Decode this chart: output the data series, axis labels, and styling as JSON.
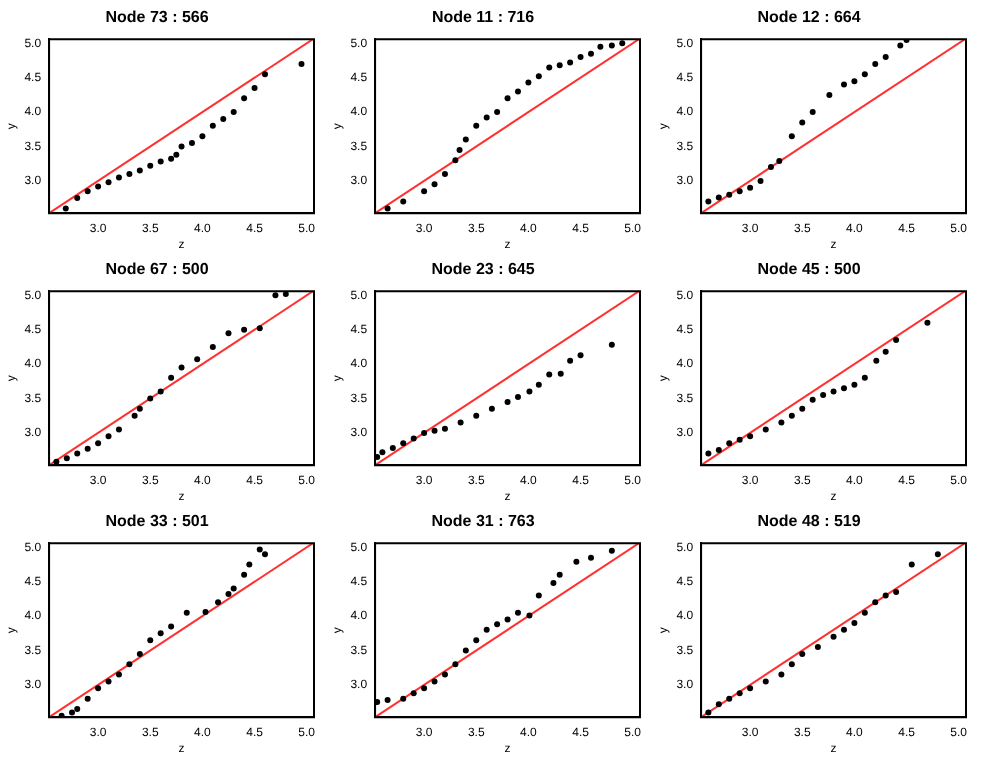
{
  "chart_data": [
    {
      "type": "scatter",
      "title": "Node 73 : 566",
      "xlabel": "z",
      "ylabel": "y",
      "xlim": [
        2.53,
        5.07
      ],
      "ylim": [
        2.53,
        5.06
      ],
      "xticks": [
        {
          "value": 3,
          "label": "3.0"
        },
        {
          "value": 3.5,
          "label": "3.5"
        },
        {
          "value": 4,
          "label": "4.0"
        },
        {
          "value": 4.5,
          "label": "4.5"
        },
        {
          "value": 5,
          "label": "5.0"
        }
      ],
      "yticks": [
        {
          "value": 3,
          "label": "3.0"
        },
        {
          "value": 3.5,
          "label": "3.5"
        },
        {
          "value": 4,
          "label": "4.0"
        },
        {
          "value": 4.5,
          "label": "4.5"
        },
        {
          "value": 5,
          "label": "5.0"
        }
      ],
      "grid": false,
      "legend": false,
      "series": [
        {
          "type": "scatter",
          "marker": "circle",
          "color": "#000000",
          "x": [
            2.69,
            2.8,
            2.9,
            3.0,
            3.1,
            3.2,
            3.3,
            3.4,
            3.5,
            3.6,
            3.7,
            3.75,
            3.8,
            3.9,
            4.0,
            4.1,
            4.2,
            4.3,
            4.4,
            4.5,
            4.6,
            4.95
          ],
          "values": [
            2.6,
            2.75,
            2.85,
            2.92,
            2.98,
            3.05,
            3.1,
            3.15,
            3.22,
            3.28,
            3.32,
            3.38,
            3.5,
            3.55,
            3.65,
            3.8,
            3.9,
            4.0,
            4.2,
            4.35,
            4.55,
            4.7
          ]
        },
        {
          "type": "line",
          "marker": "none",
          "color": "#ff3030",
          "x": [
            2.53,
            5.06
          ],
          "values": [
            2.53,
            5.06
          ]
        }
      ]
    },
    {
      "type": "scatter",
      "title": "Node 11 : 716",
      "xlabel": "z",
      "ylabel": "y",
      "xlim": [
        2.53,
        5.07
      ],
      "ylim": [
        2.53,
        5.06
      ],
      "xticks": [
        {
          "value": 3,
          "label": "3.0"
        },
        {
          "value": 3.5,
          "label": "3.5"
        },
        {
          "value": 4,
          "label": "4.0"
        },
        {
          "value": 4.5,
          "label": "4.5"
        },
        {
          "value": 5,
          "label": "5.0"
        }
      ],
      "yticks": [
        {
          "value": 3,
          "label": "3.0"
        },
        {
          "value": 3.5,
          "label": "3.5"
        },
        {
          "value": 4,
          "label": "4.0"
        },
        {
          "value": 4.5,
          "label": "4.5"
        },
        {
          "value": 5,
          "label": "5.0"
        }
      ],
      "grid": false,
      "legend": false,
      "series": [
        {
          "type": "scatter",
          "marker": "circle",
          "color": "#000000",
          "x": [
            2.65,
            2.8,
            3.0,
            3.1,
            3.2,
            3.3,
            3.34,
            3.4,
            3.5,
            3.6,
            3.7,
            3.8,
            3.9,
            4.0,
            4.1,
            4.2,
            4.3,
            4.4,
            4.5,
            4.6,
            4.69,
            4.8,
            4.9
          ],
          "values": [
            2.6,
            2.7,
            2.85,
            2.95,
            3.1,
            3.3,
            3.45,
            3.6,
            3.8,
            3.92,
            4.0,
            4.2,
            4.3,
            4.43,
            4.52,
            4.65,
            4.68,
            4.72,
            4.8,
            4.85,
            4.95,
            4.97,
            5.0
          ]
        },
        {
          "type": "line",
          "marker": "none",
          "color": "#ff3030",
          "x": [
            2.53,
            5.06
          ],
          "values": [
            2.53,
            5.06
          ]
        }
      ]
    },
    {
      "type": "scatter",
      "title": "Node 12 : 664",
      "xlabel": "z",
      "ylabel": "y",
      "xlim": [
        2.53,
        5.07
      ],
      "ylim": [
        2.53,
        5.06
      ],
      "xticks": [
        {
          "value": 3,
          "label": "3.0"
        },
        {
          "value": 3.5,
          "label": "3.5"
        },
        {
          "value": 4,
          "label": "4.0"
        },
        {
          "value": 4.5,
          "label": "4.5"
        },
        {
          "value": 5,
          "label": "5.0"
        }
      ],
      "yticks": [
        {
          "value": 3,
          "label": "3.0"
        },
        {
          "value": 3.5,
          "label": "3.5"
        },
        {
          "value": 4,
          "label": "4.0"
        },
        {
          "value": 4.5,
          "label": "4.5"
        },
        {
          "value": 5,
          "label": "5.0"
        }
      ],
      "grid": false,
      "legend": false,
      "series": [
        {
          "type": "scatter",
          "marker": "circle",
          "color": "#000000",
          "x": [
            2.6,
            2.7,
            2.8,
            2.9,
            3.0,
            3.1,
            3.2,
            3.28,
            3.4,
            3.5,
            3.6,
            3.76,
            3.9,
            4.0,
            4.1,
            4.2,
            4.3,
            4.44,
            4.5
          ],
          "values": [
            2.7,
            2.76,
            2.8,
            2.85,
            2.9,
            3.0,
            3.2,
            3.29,
            3.65,
            3.85,
            4.0,
            4.25,
            4.4,
            4.45,
            4.55,
            4.7,
            4.8,
            4.97,
            5.05
          ]
        },
        {
          "type": "line",
          "marker": "none",
          "color": "#ff3030",
          "x": [
            2.53,
            5.06
          ],
          "values": [
            2.53,
            5.06
          ]
        }
      ]
    },
    {
      "type": "scatter",
      "title": "Node 67 : 500",
      "xlabel": "z",
      "ylabel": "y",
      "xlim": [
        2.53,
        5.07
      ],
      "ylim": [
        2.53,
        5.06
      ],
      "xticks": [
        {
          "value": 3,
          "label": "3.0"
        },
        {
          "value": 3.5,
          "label": "3.5"
        },
        {
          "value": 4,
          "label": "4.0"
        },
        {
          "value": 4.5,
          "label": "4.5"
        },
        {
          "value": 5,
          "label": "5.0"
        }
      ],
      "yticks": [
        {
          "value": 3,
          "label": "3.0"
        },
        {
          "value": 3.5,
          "label": "3.5"
        },
        {
          "value": 4,
          "label": "4.0"
        },
        {
          "value": 4.5,
          "label": "4.5"
        },
        {
          "value": 5,
          "label": "5.0"
        }
      ],
      "grid": false,
      "legend": false,
      "series": [
        {
          "type": "scatter",
          "marker": "circle",
          "color": "#000000",
          "x": [
            2.6,
            2.7,
            2.8,
            2.9,
            3.0,
            3.1,
            3.2,
            3.35,
            3.4,
            3.5,
            3.6,
            3.7,
            3.8,
            3.95,
            4.1,
            4.25,
            4.4,
            4.55,
            4.7,
            4.8
          ],
          "values": [
            2.58,
            2.63,
            2.7,
            2.77,
            2.85,
            2.95,
            3.05,
            3.25,
            3.35,
            3.5,
            3.6,
            3.8,
            3.95,
            4.07,
            4.25,
            4.45,
            4.5,
            4.52,
            5.0,
            5.02
          ]
        },
        {
          "type": "line",
          "marker": "none",
          "color": "#ff3030",
          "x": [
            2.53,
            5.06
          ],
          "values": [
            2.53,
            5.06
          ]
        }
      ]
    },
    {
      "type": "scatter",
      "title": "Node 23 : 645",
      "xlabel": "z",
      "ylabel": "y",
      "xlim": [
        2.53,
        5.07
      ],
      "ylim": [
        2.53,
        5.06
      ],
      "xticks": [
        {
          "value": 3,
          "label": "3.0"
        },
        {
          "value": 3.5,
          "label": "3.5"
        },
        {
          "value": 4,
          "label": "4.0"
        },
        {
          "value": 4.5,
          "label": "4.5"
        },
        {
          "value": 5,
          "label": "5.0"
        }
      ],
      "yticks": [
        {
          "value": 3,
          "label": "3.0"
        },
        {
          "value": 3.5,
          "label": "3.5"
        },
        {
          "value": 4,
          "label": "4.0"
        },
        {
          "value": 4.5,
          "label": "4.5"
        },
        {
          "value": 5,
          "label": "5.0"
        }
      ],
      "grid": false,
      "legend": false,
      "series": [
        {
          "type": "scatter",
          "marker": "circle",
          "color": "#000000",
          "x": [
            2.55,
            2.6,
            2.7,
            2.8,
            2.9,
            3.0,
            3.1,
            3.2,
            3.35,
            3.5,
            3.65,
            3.8,
            3.9,
            4.01,
            4.1,
            4.2,
            4.31,
            4.4,
            4.5,
            4.8
          ],
          "values": [
            2.65,
            2.72,
            2.78,
            2.85,
            2.92,
            3.0,
            3.03,
            3.06,
            3.15,
            3.25,
            3.35,
            3.45,
            3.52,
            3.6,
            3.7,
            3.85,
            3.86,
            4.05,
            4.13,
            4.28
          ]
        },
        {
          "type": "line",
          "marker": "none",
          "color": "#ff3030",
          "x": [
            2.53,
            5.06
          ],
          "values": [
            2.53,
            5.06
          ]
        }
      ]
    },
    {
      "type": "scatter",
      "title": "Node 45 : 500",
      "xlabel": "z",
      "ylabel": "y",
      "xlim": [
        2.53,
        5.07
      ],
      "ylim": [
        2.53,
        5.06
      ],
      "xticks": [
        {
          "value": 3,
          "label": "3.0"
        },
        {
          "value": 3.5,
          "label": "3.5"
        },
        {
          "value": 4,
          "label": "4.0"
        },
        {
          "value": 4.5,
          "label": "4.5"
        },
        {
          "value": 5,
          "label": "5.0"
        }
      ],
      "yticks": [
        {
          "value": 3,
          "label": "3.0"
        },
        {
          "value": 3.5,
          "label": "3.5"
        },
        {
          "value": 4,
          "label": "4.0"
        },
        {
          "value": 4.5,
          "label": "4.5"
        },
        {
          "value": 5,
          "label": "5.0"
        }
      ],
      "grid": false,
      "legend": false,
      "series": [
        {
          "type": "scatter",
          "marker": "circle",
          "color": "#000000",
          "x": [
            2.6,
            2.7,
            2.8,
            2.9,
            3.0,
            3.15,
            3.3,
            3.4,
            3.5,
            3.6,
            3.7,
            3.8,
            3.9,
            4.0,
            4.1,
            4.21,
            4.3,
            4.4,
            4.7
          ],
          "values": [
            2.7,
            2.75,
            2.85,
            2.9,
            2.95,
            3.05,
            3.15,
            3.25,
            3.35,
            3.48,
            3.55,
            3.6,
            3.65,
            3.7,
            3.8,
            4.05,
            4.18,
            4.35,
            4.6
          ]
        },
        {
          "type": "line",
          "marker": "none",
          "color": "#ff3030",
          "x": [
            2.53,
            5.06
          ],
          "values": [
            2.53,
            5.06
          ]
        }
      ]
    },
    {
      "type": "scatter",
      "title": "Node 33 : 501",
      "xlabel": "z",
      "ylabel": "y",
      "xlim": [
        2.53,
        5.07
      ],
      "ylim": [
        2.53,
        5.06
      ],
      "xticks": [
        {
          "value": 3,
          "label": "3.0"
        },
        {
          "value": 3.5,
          "label": "3.5"
        },
        {
          "value": 4,
          "label": "4.0"
        },
        {
          "value": 4.5,
          "label": "4.5"
        },
        {
          "value": 5,
          "label": "5.0"
        }
      ],
      "yticks": [
        {
          "value": 3,
          "label": "3.0"
        },
        {
          "value": 3.5,
          "label": "3.5"
        },
        {
          "value": 4,
          "label": "4.0"
        },
        {
          "value": 4.5,
          "label": "4.5"
        },
        {
          "value": 5,
          "label": "5.0"
        }
      ],
      "grid": false,
      "legend": false,
      "series": [
        {
          "type": "scatter",
          "marker": "circle",
          "color": "#000000",
          "x": [
            2.65,
            2.75,
            2.8,
            2.9,
            3.0,
            3.1,
            3.2,
            3.3,
            3.4,
            3.5,
            3.6,
            3.7,
            3.85,
            4.03,
            4.15,
            4.25,
            4.3,
            4.4,
            4.45,
            4.55,
            4.6
          ],
          "values": [
            2.55,
            2.6,
            2.65,
            2.8,
            2.95,
            3.05,
            3.15,
            3.3,
            3.45,
            3.65,
            3.75,
            3.85,
            4.05,
            4.06,
            4.2,
            4.32,
            4.4,
            4.6,
            4.75,
            4.97,
            4.9
          ]
        },
        {
          "type": "line",
          "marker": "none",
          "color": "#ff3030",
          "x": [
            2.53,
            5.06
          ],
          "values": [
            2.53,
            5.06
          ]
        }
      ]
    },
    {
      "type": "scatter",
      "title": "Node 31 : 763",
      "xlabel": "z",
      "ylabel": "y",
      "xlim": [
        2.53,
        5.07
      ],
      "ylim": [
        2.53,
        5.06
      ],
      "xticks": [
        {
          "value": 3,
          "label": "3.0"
        },
        {
          "value": 3.5,
          "label": "3.5"
        },
        {
          "value": 4,
          "label": "4.0"
        },
        {
          "value": 4.5,
          "label": "4.5"
        },
        {
          "value": 5,
          "label": "5.0"
        }
      ],
      "yticks": [
        {
          "value": 3,
          "label": "3.0"
        },
        {
          "value": 3.5,
          "label": "3.5"
        },
        {
          "value": 4,
          "label": "4.0"
        },
        {
          "value": 4.5,
          "label": "4.5"
        },
        {
          "value": 5,
          "label": "5.0"
        }
      ],
      "grid": false,
      "legend": false,
      "series": [
        {
          "type": "scatter",
          "marker": "circle",
          "color": "#000000",
          "x": [
            2.55,
            2.65,
            2.8,
            2.9,
            3.0,
            3.1,
            3.2,
            3.3,
            3.4,
            3.5,
            3.6,
            3.7,
            3.8,
            3.9,
            4.01,
            4.1,
            4.24,
            4.3,
            4.46,
            4.6,
            4.8
          ],
          "values": [
            2.75,
            2.78,
            2.8,
            2.88,
            2.95,
            3.05,
            3.15,
            3.3,
            3.5,
            3.65,
            3.8,
            3.88,
            3.95,
            4.05,
            4.01,
            4.3,
            4.48,
            4.6,
            4.79,
            4.85,
            4.95
          ]
        },
        {
          "type": "line",
          "marker": "none",
          "color": "#ff3030",
          "x": [
            2.53,
            5.06
          ],
          "values": [
            2.53,
            5.06
          ]
        }
      ]
    },
    {
      "type": "scatter",
      "title": "Node 48 : 519",
      "xlabel": "z",
      "ylabel": "y",
      "xlim": [
        2.53,
        5.07
      ],
      "ylim": [
        2.53,
        5.06
      ],
      "xticks": [
        {
          "value": 3,
          "label": "3.0"
        },
        {
          "value": 3.5,
          "label": "3.5"
        },
        {
          "value": 4,
          "label": "4.0"
        },
        {
          "value": 4.5,
          "label": "4.5"
        },
        {
          "value": 5,
          "label": "5.0"
        }
      ],
      "yticks": [
        {
          "value": 3,
          "label": "3.0"
        },
        {
          "value": 3.5,
          "label": "3.5"
        },
        {
          "value": 4,
          "label": "4.0"
        },
        {
          "value": 4.5,
          "label": "4.5"
        },
        {
          "value": 5,
          "label": "5.0"
        }
      ],
      "grid": false,
      "legend": false,
      "series": [
        {
          "type": "scatter",
          "marker": "circle",
          "color": "#000000",
          "x": [
            2.6,
            2.7,
            2.8,
            2.9,
            3.0,
            3.15,
            3.3,
            3.4,
            3.5,
            3.65,
            3.8,
            3.9,
            4.0,
            4.1,
            4.2,
            4.3,
            4.4,
            4.55,
            4.8
          ],
          "values": [
            2.6,
            2.72,
            2.8,
            2.88,
            2.95,
            3.05,
            3.15,
            3.3,
            3.45,
            3.55,
            3.7,
            3.8,
            3.9,
            4.05,
            4.2,
            4.3,
            4.35,
            4.75,
            4.9
          ]
        },
        {
          "type": "line",
          "marker": "none",
          "color": "#ff3030",
          "x": [
            2.53,
            5.06
          ],
          "values": [
            2.53,
            5.06
          ]
        }
      ]
    }
  ]
}
